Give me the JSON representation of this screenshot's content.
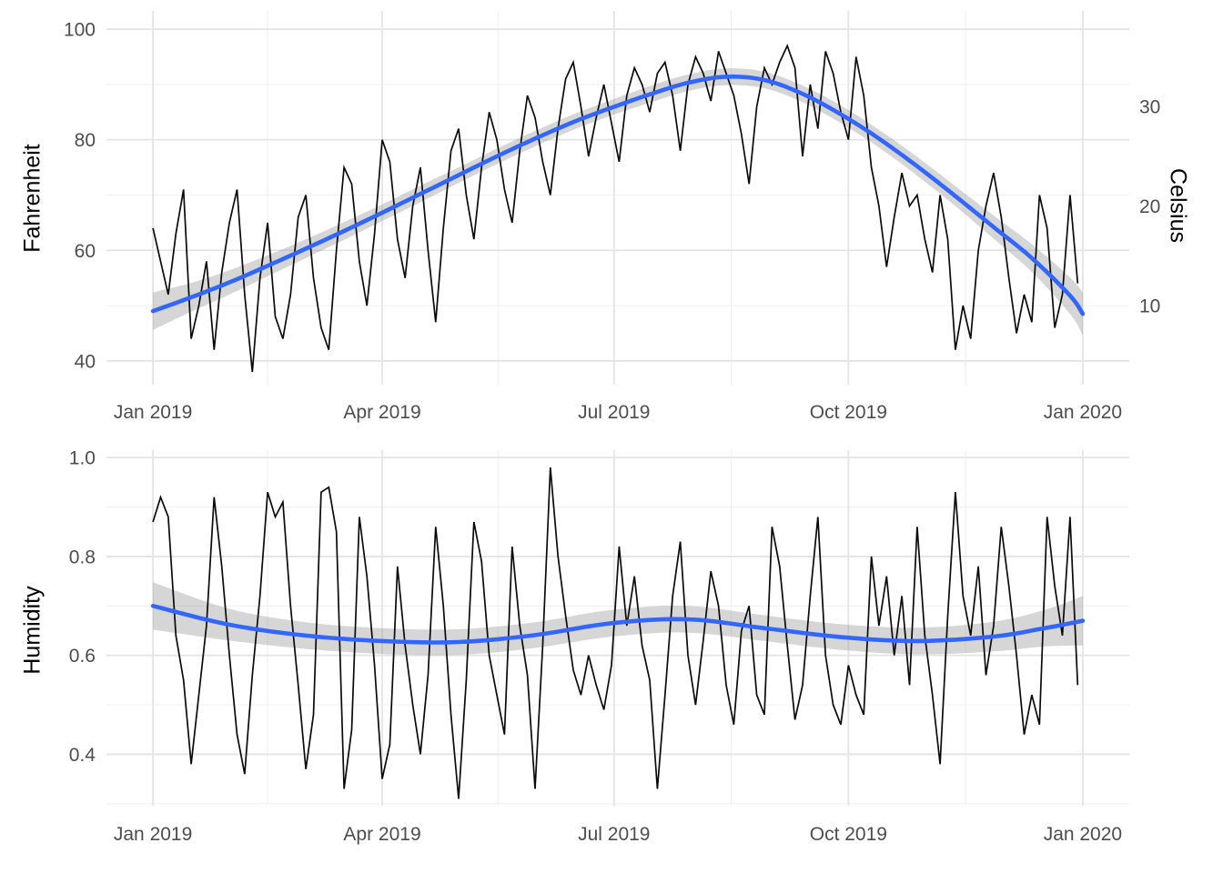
{
  "figure": {
    "background": "#ffffff",
    "colors": {
      "smooth_line": "#3366FF",
      "data_line": "#0a0a0a",
      "ribbon": "#999999",
      "ribbon_opacity": 0.4,
      "grid_major": "#e4e4e4",
      "grid_minor": "#f1f1f1",
      "tick_text": "#4d4d4d",
      "axis_title": "#000000"
    }
  },
  "chart_data": [
    {
      "type": "line",
      "panel": "temperature",
      "title": "",
      "ylabel_left": "Fahrenheit",
      "ylabel_right": "Celsius",
      "xlabel": "",
      "grid": true,
      "legend": "none",
      "x_tick_labels": [
        "Jan 2019",
        "Apr 2019",
        "Jul 2019",
        "Oct 2019",
        "Jan 2020"
      ],
      "x_tick_days": [
        0,
        90,
        181,
        273,
        365
      ],
      "x_minor_days": [
        45,
        135.5,
        227,
        319
      ],
      "xlim_days": [
        -18.25,
        383.25
      ],
      "ylim": [
        35.7,
        103.3
      ],
      "y_ticks": [
        40,
        60,
        80,
        100
      ],
      "y_tick_labels": [
        "40",
        "60",
        "80",
        "100"
      ],
      "y_minor_ticks": [
        50,
        70,
        90
      ],
      "right_y_ticks_celsius": [
        10,
        20,
        30
      ],
      "right_y_tick_labels": [
        "10",
        "20",
        "30"
      ],
      "series": [
        {
          "name": "daily-temperature-fahrenheit",
          "style": "jagged",
          "x_start_day": 0,
          "x_step_days": 3,
          "values": [
            64,
            58,
            52,
            63,
            71,
            44,
            50,
            58,
            42,
            56,
            65,
            71,
            52,
            38,
            55,
            65,
            48,
            44,
            52,
            66,
            70,
            55,
            46,
            42,
            60,
            75,
            72,
            58,
            50,
            63,
            80,
            76,
            62,
            55,
            68,
            75,
            60,
            47,
            64,
            78,
            82,
            70,
            62,
            75,
            85,
            80,
            71,
            65,
            78,
            88,
            84,
            76,
            70,
            82,
            91,
            94,
            86,
            77,
            84,
            90,
            83,
            76,
            88,
            93,
            90,
            85,
            92,
            94,
            88,
            78,
            90,
            95,
            92,
            87,
            96,
            92,
            88,
            81,
            72,
            86,
            93,
            90,
            94,
            97,
            93,
            77,
            90,
            82,
            96,
            92,
            85,
            80,
            95,
            88,
            75,
            68,
            57,
            66,
            74,
            68,
            70,
            62,
            56,
            70,
            62,
            42,
            50,
            44,
            60,
            68,
            74,
            66,
            55,
            45,
            52,
            47,
            70,
            64,
            46,
            52,
            70,
            54
          ]
        },
        {
          "name": "loess-smooth-temperature",
          "style": "smooth",
          "x_days": [
            0,
            15,
            30,
            45,
            60,
            75,
            90,
            105,
            120,
            135,
            150,
            165,
            180,
            195,
            210,
            225,
            240,
            255,
            270,
            285,
            300,
            315,
            330,
            345,
            360,
            365
          ],
          "values": [
            49.0,
            51.5,
            54.2,
            57.2,
            60.3,
            63.5,
            66.8,
            70.2,
            73.6,
            77.0,
            80.2,
            83.2,
            85.8,
            88.2,
            90.3,
            91.4,
            90.8,
            88.3,
            84.6,
            80.2,
            75.2,
            69.8,
            64.2,
            58.6,
            51.8,
            48.5
          ],
          "ribbon_halfwidth": [
            3.4,
            2.6,
            2.2,
            1.9,
            1.7,
            1.6,
            1.5,
            1.5,
            1.4,
            1.4,
            1.4,
            1.4,
            1.4,
            1.5,
            1.5,
            1.5,
            1.5,
            1.5,
            1.6,
            1.6,
            1.7,
            1.8,
            2.1,
            2.5,
            3.3,
            3.9
          ]
        }
      ]
    },
    {
      "type": "line",
      "panel": "humidity",
      "title": "",
      "ylabel_left": "Humidity",
      "xlabel": "",
      "grid": true,
      "legend": "none",
      "x_tick_labels": [
        "Jan 2019",
        "Apr 2019",
        "Jul 2019",
        "Oct 2019",
        "Jan 2020"
      ],
      "x_tick_days": [
        0,
        90,
        181,
        273,
        365
      ],
      "x_minor_days": [
        45,
        135.5,
        227,
        319
      ],
      "xlim_days": [
        -18.25,
        383.25
      ],
      "ylim": [
        0.296,
        1.015
      ],
      "y_ticks": [
        0.4,
        0.6,
        0.8,
        1.0
      ],
      "y_tick_labels": [
        "0.4",
        "0.6",
        "0.8",
        "1.0"
      ],
      "y_minor_ticks": [
        0.3,
        0.5,
        0.7,
        0.9
      ],
      "series": [
        {
          "name": "daily-humidity",
          "style": "jagged",
          "x_start_day": 0,
          "x_step_days": 3,
          "values": [
            0.87,
            0.92,
            0.88,
            0.64,
            0.55,
            0.38,
            0.52,
            0.66,
            0.92,
            0.78,
            0.6,
            0.44,
            0.36,
            0.56,
            0.72,
            0.93,
            0.88,
            0.91,
            0.7,
            0.54,
            0.37,
            0.48,
            0.93,
            0.94,
            0.85,
            0.33,
            0.45,
            0.88,
            0.76,
            0.58,
            0.35,
            0.42,
            0.78,
            0.62,
            0.5,
            0.4,
            0.56,
            0.86,
            0.7,
            0.48,
            0.31,
            0.55,
            0.87,
            0.79,
            0.6,
            0.52,
            0.44,
            0.82,
            0.66,
            0.56,
            0.33,
            0.62,
            0.98,
            0.8,
            0.68,
            0.57,
            0.52,
            0.6,
            0.54,
            0.49,
            0.58,
            0.82,
            0.66,
            0.76,
            0.62,
            0.55,
            0.33,
            0.52,
            0.72,
            0.83,
            0.6,
            0.5,
            0.63,
            0.77,
            0.7,
            0.54,
            0.46,
            0.65,
            0.7,
            0.52,
            0.48,
            0.86,
            0.78,
            0.62,
            0.47,
            0.54,
            0.72,
            0.88,
            0.6,
            0.5,
            0.46,
            0.58,
            0.52,
            0.48,
            0.8,
            0.66,
            0.76,
            0.6,
            0.72,
            0.54,
            0.86,
            0.64,
            0.52,
            0.38,
            0.68,
            0.93,
            0.72,
            0.64,
            0.78,
            0.56,
            0.66,
            0.86,
            0.74,
            0.6,
            0.44,
            0.52,
            0.46,
            0.88,
            0.74,
            0.64,
            0.88,
            0.54
          ]
        },
        {
          "name": "loess-smooth-humidity",
          "style": "smooth",
          "x_days": [
            0,
            30,
            60,
            90,
            120,
            150,
            180,
            210,
            240,
            270,
            300,
            330,
            350,
            365
          ],
          "values": [
            0.7,
            0.662,
            0.64,
            0.629,
            0.627,
            0.641,
            0.665,
            0.673,
            0.655,
            0.637,
            0.629,
            0.638,
            0.655,
            0.67
          ],
          "ribbon_halfwidth": [
            0.048,
            0.032,
            0.027,
            0.026,
            0.026,
            0.026,
            0.027,
            0.027,
            0.026,
            0.026,
            0.027,
            0.03,
            0.037,
            0.05
          ]
        }
      ]
    }
  ]
}
